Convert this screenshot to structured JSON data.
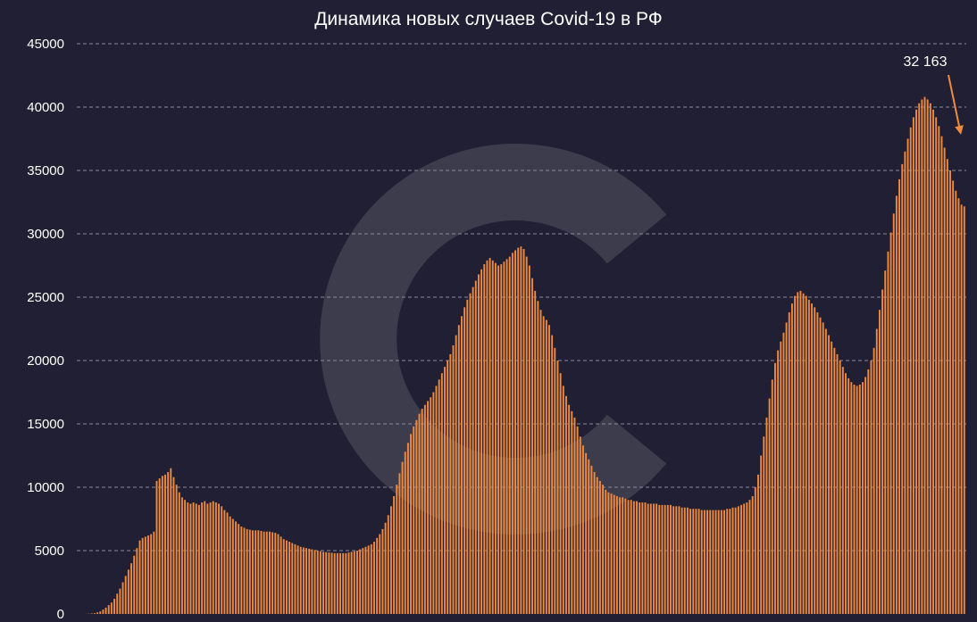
{
  "chart_data": {
    "type": "bar",
    "title": "Динамика новых случаев Covid-19 в РФ",
    "xlabel": "",
    "ylabel": "",
    "ylim": [
      0,
      45000
    ],
    "yticks": [
      "0",
      "5000",
      "10000",
      "15000",
      "20000",
      "25000",
      "30000",
      "35000",
      "40000",
      "45000"
    ],
    "grid": true,
    "legend": "none",
    "bar_color": "#f08a3c",
    "background": "#201f33",
    "annotation": {
      "text": "32 163",
      "target_value": 32163,
      "arrow_color": "#f08a3c"
    },
    "approx_values": [
      0,
      0,
      0,
      10,
      20,
      40,
      60,
      120,
      200,
      350,
      500,
      700,
      900,
      1200,
      1600,
      2000,
      2500,
      3000,
      3500,
      4000,
      4600,
      5200,
      5800,
      6000,
      6100,
      6200,
      6300,
      6500,
      10500,
      10700,
      10900,
      11000,
      11200,
      11500,
      10800,
      10200,
      9600,
      9200,
      9000,
      8800,
      8700,
      8800,
      8700,
      8600,
      8800,
      8900,
      8700,
      8800,
      8900,
      8800,
      8700,
      8500,
      8200,
      8000,
      7700,
      7500,
      7300,
      7100,
      6900,
      6800,
      6700,
      6650,
      6600,
      6600,
      6600,
      6550,
      6500,
      6500,
      6500,
      6450,
      6400,
      6300,
      6100,
      5900,
      5800,
      5700,
      5600,
      5500,
      5400,
      5300,
      5250,
      5200,
      5150,
      5100,
      5050,
      5000,
      4950,
      4900,
      4880,
      4850,
      4830,
      4800,
      4800,
      4800,
      4800,
      4800,
      4850,
      4900,
      4950,
      5000,
      5100,
      5200,
      5300,
      5400,
      5500,
      5700,
      6000,
      6300,
      6700,
      7200,
      7800,
      8500,
      9300,
      10200,
      11100,
      12000,
      12800,
      13500,
      14200,
      14800,
      15300,
      15800,
      16200,
      16500,
      16800,
      17100,
      17500,
      18000,
      18500,
      19000,
      19500,
      20000,
      20500,
      21200,
      22000,
      22800,
      23500,
      24200,
      24800,
      25300,
      25800,
      26300,
      26800,
      27200,
      27600,
      27900,
      28100,
      27900,
      27700,
      27500,
      27600,
      27800,
      28000,
      28200,
      28500,
      28700,
      28900,
      29000,
      28800,
      28200,
      27500,
      26500,
      25500,
      24700,
      24000,
      23500,
      23200,
      22800,
      22000,
      21000,
      20000,
      19000,
      18000,
      17200,
      16500,
      16000,
      15500,
      14800,
      14000,
      13300,
      12700,
      12200,
      11700,
      11200,
      10800,
      10500,
      10200,
      9800,
      9600,
      9500,
      9400,
      9300,
      9200,
      9200,
      9100,
      9000,
      9000,
      8900,
      8900,
      8800,
      8800,
      8800,
      8700,
      8700,
      8700,
      8700,
      8600,
      8600,
      8600,
      8600,
      8600,
      8500,
      8500,
      8500,
      8400,
      8400,
      8400,
      8300,
      8300,
      8300,
      8300,
      8200,
      8200,
      8200,
      8200,
      8200,
      8200,
      8200,
      8200,
      8200,
      8300,
      8300,
      8400,
      8400,
      8500,
      8600,
      8700,
      8800,
      9000,
      9300,
      10000,
      11000,
      12500,
      14000,
      15500,
      17000,
      18500,
      19800,
      20800,
      21500,
      22200,
      23000,
      23800,
      24500,
      25100,
      25400,
      25500,
      25300,
      25100,
      24800,
      24500,
      24200,
      23800,
      23400,
      23000,
      22500,
      22000,
      21500,
      21000,
      20500,
      20000,
      19500,
      19000,
      18600,
      18300,
      18100,
      18000,
      18100,
      18300,
      18700,
      19300,
      20000,
      21000,
      22500,
      24000,
      25600,
      27100,
      28600,
      30100,
      31600,
      33000,
      34300,
      35500,
      36500,
      37500,
      38400,
      39200,
      39800,
      40300,
      40600,
      40800,
      40600,
      40300,
      39800,
      39200,
      38500,
      37700,
      36800,
      35900,
      35000,
      34200,
      33400,
      32800,
      32300,
      32163
    ]
  }
}
